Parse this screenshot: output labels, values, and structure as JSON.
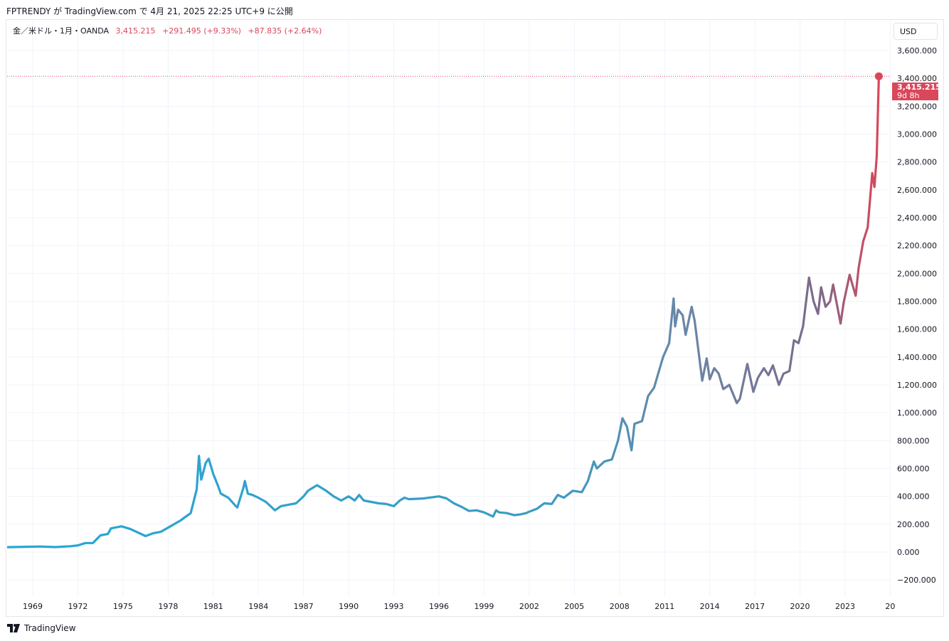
{
  "header": {
    "published": "FPTRENDY が TradingView.com で 4月 21, 2025 22:25 UTC+9 に公開"
  },
  "legend": {
    "symbol": "金／米ドル・1月・OANDA",
    "price": "3,415.215",
    "change1": "+291.495 (+9.33%)",
    "change2": "+87.835 (+2.64%)"
  },
  "currency": "USD",
  "last_price": {
    "value": "3,415.215",
    "countdown": "9d 8h"
  },
  "footer": {
    "brand": "TradingView"
  },
  "colors": {
    "start": "#26a8d4",
    "mid": "#6a86a6",
    "end": "#d9475a",
    "grid": "#f0f3fa"
  },
  "chart_data": {
    "type": "line",
    "title": "",
    "xlabel": "",
    "ylabel": "",
    "x_ticks": [
      "1969",
      "1972",
      "1975",
      "1978",
      "1981",
      "1984",
      "1987",
      "1990",
      "1993",
      "1996",
      "1999",
      "2002",
      "2005",
      "2008",
      "2011",
      "2014",
      "2017",
      "2020",
      "2023",
      "20"
    ],
    "y_ticks": [
      "−200.000",
      "0.000",
      "200.000",
      "400.000",
      "600.000",
      "800.000",
      "1,000.000",
      "1,200.000",
      "1,400.000",
      "1,600.000",
      "1,800.000",
      "2,000.000",
      "2,200.000",
      "2,400.000",
      "2,600.000",
      "2,800.000",
      "3,000.000",
      "3,200.000",
      "3,400.000",
      "3,600.000"
    ],
    "ylim": [
      -300,
      3760
    ],
    "grid": true,
    "series": [
      {
        "points": [
          [
            1967.3,
            35
          ],
          [
            1968.5,
            38
          ],
          [
            1969.5,
            40
          ],
          [
            1970.5,
            36
          ],
          [
            1971.5,
            42
          ],
          [
            1972.0,
            48
          ],
          [
            1972.5,
            65
          ],
          [
            1973.0,
            65
          ],
          [
            1973.5,
            120
          ],
          [
            1974.0,
            130
          ],
          [
            1974.2,
            170
          ],
          [
            1974.9,
            185
          ],
          [
            1975.5,
            165
          ],
          [
            1976.5,
            115
          ],
          [
            1977.0,
            135
          ],
          [
            1977.5,
            145
          ],
          [
            1978.0,
            175
          ],
          [
            1978.8,
            225
          ],
          [
            1979.5,
            280
          ],
          [
            1979.9,
            450
          ],
          [
            1980.05,
            690
          ],
          [
            1980.2,
            520
          ],
          [
            1980.5,
            640
          ],
          [
            1980.7,
            670
          ],
          [
            1981.0,
            560
          ],
          [
            1981.3,
            480
          ],
          [
            1981.5,
            420
          ],
          [
            1982.0,
            390
          ],
          [
            1982.5,
            330
          ],
          [
            1982.6,
            320
          ],
          [
            1983.0,
            460
          ],
          [
            1983.1,
            510
          ],
          [
            1983.3,
            420
          ],
          [
            1983.6,
            410
          ],
          [
            1984.0,
            390
          ],
          [
            1984.5,
            360
          ],
          [
            1985.1,
            300
          ],
          [
            1985.5,
            330
          ],
          [
            1986.0,
            340
          ],
          [
            1986.5,
            350
          ],
          [
            1987.0,
            400
          ],
          [
            1987.3,
            440
          ],
          [
            1987.9,
            480
          ],
          [
            1988.5,
            440
          ],
          [
            1989.0,
            400
          ],
          [
            1989.5,
            370
          ],
          [
            1990.0,
            400
          ],
          [
            1990.4,
            370
          ],
          [
            1990.7,
            410
          ],
          [
            1991.0,
            370
          ],
          [
            1991.5,
            360
          ],
          [
            1992.0,
            350
          ],
          [
            1992.5,
            345
          ],
          [
            1993.0,
            330
          ],
          [
            1993.4,
            370
          ],
          [
            1993.7,
            390
          ],
          [
            1994.0,
            380
          ],
          [
            1995.0,
            385
          ],
          [
            1996.0,
            400
          ],
          [
            1996.5,
            385
          ],
          [
            1997.0,
            350
          ],
          [
            1997.5,
            325
          ],
          [
            1998.0,
            295
          ],
          [
            1998.5,
            300
          ],
          [
            1999.0,
            285
          ],
          [
            1999.6,
            255
          ],
          [
            1999.8,
            300
          ],
          [
            2000.0,
            285
          ],
          [
            2000.5,
            280
          ],
          [
            2001.0,
            265
          ],
          [
            2001.4,
            270
          ],
          [
            2001.8,
            280
          ],
          [
            2002.0,
            290
          ],
          [
            2002.5,
            310
          ],
          [
            2003.0,
            350
          ],
          [
            2003.5,
            345
          ],
          [
            2003.9,
            410
          ],
          [
            2004.3,
            390
          ],
          [
            2004.9,
            440
          ],
          [
            2005.5,
            430
          ],
          [
            2005.9,
            510
          ],
          [
            2006.3,
            650
          ],
          [
            2006.5,
            600
          ],
          [
            2007.0,
            650
          ],
          [
            2007.5,
            665
          ],
          [
            2007.9,
            800
          ],
          [
            2008.2,
            960
          ],
          [
            2008.5,
            900
          ],
          [
            2008.8,
            730
          ],
          [
            2009.0,
            920
          ],
          [
            2009.5,
            940
          ],
          [
            2009.9,
            1120
          ],
          [
            2010.3,
            1180
          ],
          [
            2010.9,
            1400
          ],
          [
            2011.3,
            1500
          ],
          [
            2011.6,
            1820
          ],
          [
            2011.7,
            1620
          ],
          [
            2011.9,
            1740
          ],
          [
            2012.2,
            1700
          ],
          [
            2012.4,
            1560
          ],
          [
            2012.8,
            1760
          ],
          [
            2013.0,
            1660
          ],
          [
            2013.3,
            1400
          ],
          [
            2013.5,
            1230
          ],
          [
            2013.8,
            1390
          ],
          [
            2014.0,
            1240
          ],
          [
            2014.3,
            1320
          ],
          [
            2014.6,
            1280
          ],
          [
            2014.9,
            1170
          ],
          [
            2015.3,
            1200
          ],
          [
            2015.8,
            1070
          ],
          [
            2016.0,
            1100
          ],
          [
            2016.5,
            1350
          ],
          [
            2016.9,
            1150
          ],
          [
            2017.2,
            1250
          ],
          [
            2017.6,
            1320
          ],
          [
            2017.9,
            1270
          ],
          [
            2018.2,
            1340
          ],
          [
            2018.6,
            1200
          ],
          [
            2018.9,
            1280
          ],
          [
            2019.3,
            1300
          ],
          [
            2019.6,
            1520
          ],
          [
            2019.9,
            1500
          ],
          [
            2020.2,
            1620
          ],
          [
            2020.6,
            1970
          ],
          [
            2020.9,
            1800
          ],
          [
            2021.2,
            1710
          ],
          [
            2021.4,
            1900
          ],
          [
            2021.7,
            1760
          ],
          [
            2022.0,
            1800
          ],
          [
            2022.2,
            1920
          ],
          [
            2022.7,
            1640
          ],
          [
            2022.9,
            1790
          ],
          [
            2023.3,
            1990
          ],
          [
            2023.7,
            1840
          ],
          [
            2023.9,
            2040
          ],
          [
            2024.2,
            2230
          ],
          [
            2024.5,
            2330
          ],
          [
            2024.8,
            2720
          ],
          [
            2024.95,
            2620
          ],
          [
            2025.1,
            2840
          ],
          [
            2025.24,
            3415.215
          ]
        ]
      }
    ]
  }
}
